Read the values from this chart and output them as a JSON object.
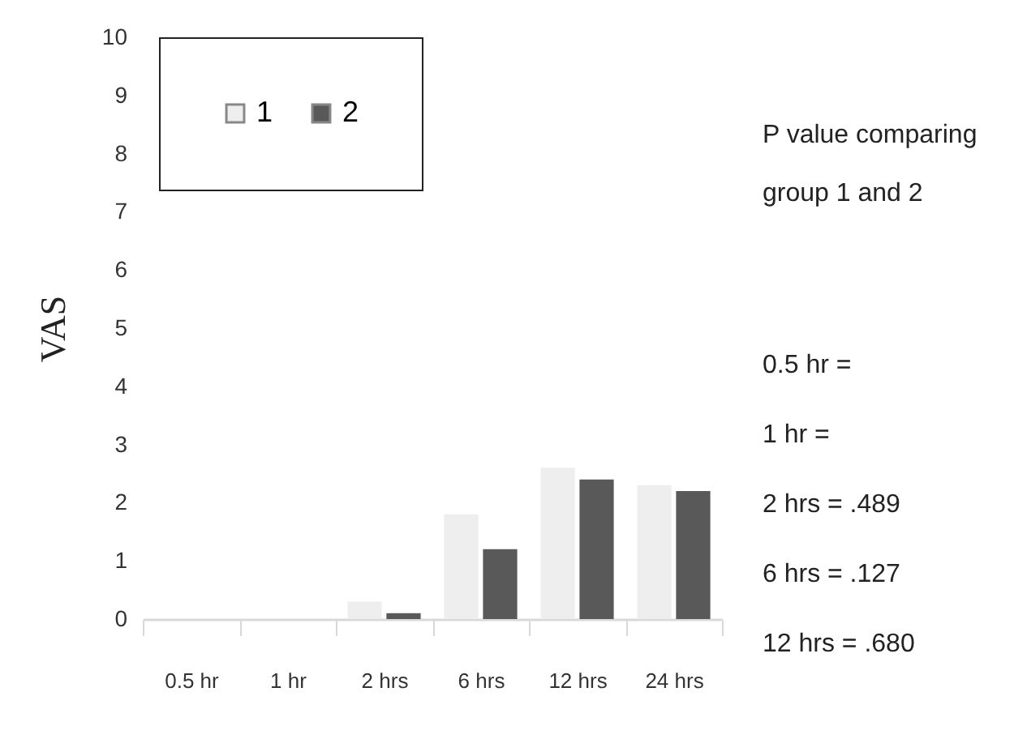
{
  "chart_data": {
    "type": "bar",
    "ylabel": "VAS",
    "categories": [
      "0.5 hr",
      "1 hr",
      "2 hrs",
      "6 hrs",
      "12 hrs",
      "24 hrs"
    ],
    "series": [
      {
        "name": "1",
        "color": "#eeeeee",
        "values": [
          0,
          0,
          0.3,
          1.8,
          2.6,
          2.3
        ]
      },
      {
        "name": "2",
        "color": "#595959",
        "values": [
          0,
          0,
          0.1,
          1.2,
          2.4,
          2.2
        ]
      }
    ],
    "ylim": [
      0,
      10
    ],
    "yticks": [
      0,
      1,
      2,
      3,
      4,
      5,
      6,
      7,
      8,
      9,
      10
    ],
    "grid": false,
    "legend": "top left",
    "annotations": [
      "P value comparing group 1 and 2",
      "0.5 hr =",
      "1 hr =",
      "2 hrs = .489",
      "6 hrs = .127",
      "12 hrs = .680"
    ]
  }
}
